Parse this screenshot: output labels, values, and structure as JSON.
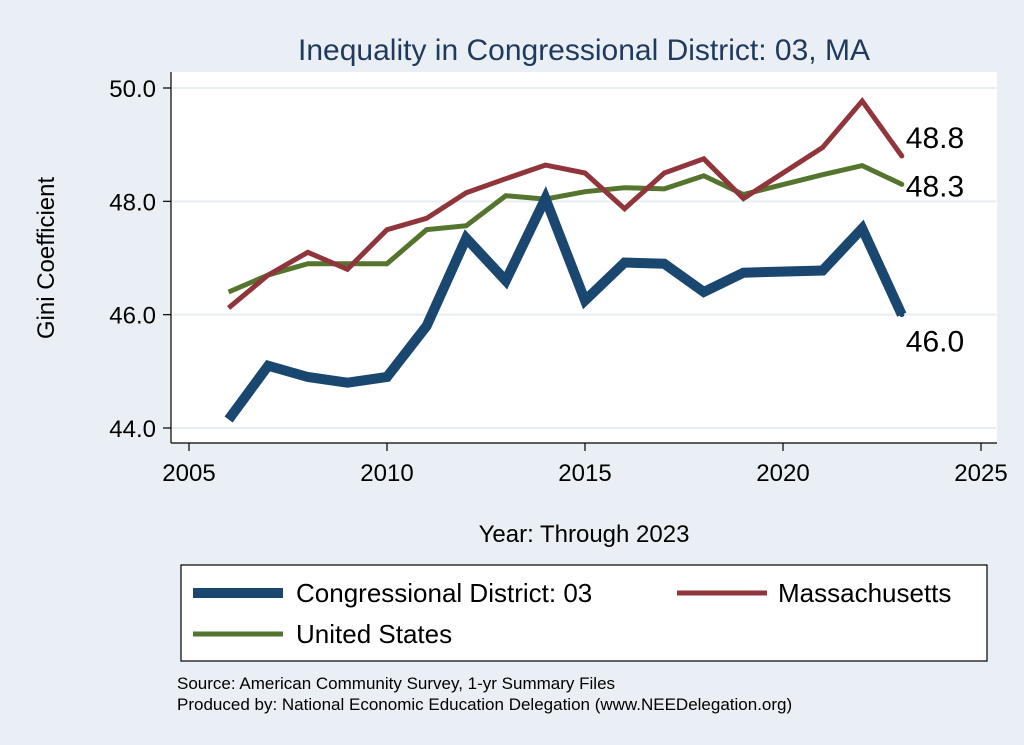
{
  "chart_data": {
    "type": "line",
    "title": "Inequality in Congressional District:  03, MA",
    "xlabel": "Year: Through 2023",
    "ylabel": "Gini Coefficient",
    "xlim": [
      2005,
      2025
    ],
    "ylim": [
      44.0,
      50.0
    ],
    "x_ticks": [
      2005,
      2010,
      2015,
      2020,
      2025
    ],
    "x_tick_labels": [
      "2005",
      "2010",
      "2015",
      "2020",
      "2025"
    ],
    "y_ticks": [
      44.0,
      46.0,
      48.0,
      50.0
    ],
    "y_tick_labels": [
      "44.0",
      "46.0",
      "48.0",
      "50.0"
    ],
    "grid": true,
    "legend_position": "bottom",
    "series": [
      {
        "name": "Congressional District:  03",
        "color": "#1a476f",
        "x": [
          2006,
          2007,
          2008,
          2009,
          2010,
          2011,
          2012,
          2013,
          2014,
          2015,
          2016,
          2017,
          2018,
          2019,
          2021,
          2022,
          2023
        ],
        "values": [
          44.15,
          45.1,
          44.9,
          44.8,
          44.9,
          45.8,
          47.35,
          46.6,
          48.05,
          46.25,
          46.92,
          46.9,
          46.4,
          46.74,
          46.78,
          47.52,
          46.0
        ],
        "end_label": "46.0"
      },
      {
        "name": "Massachusetts",
        "color": "#90353b",
        "x": [
          2006,
          2007,
          2008,
          2009,
          2010,
          2011,
          2012,
          2013,
          2014,
          2015,
          2016,
          2017,
          2018,
          2019,
          2021,
          2022,
          2023
        ],
        "values": [
          46.12,
          46.7,
          47.1,
          46.8,
          47.5,
          47.7,
          48.15,
          48.4,
          48.64,
          48.5,
          47.87,
          48.5,
          48.75,
          48.05,
          48.95,
          49.77,
          48.8
        ],
        "end_label": "48.8"
      },
      {
        "name": "United States",
        "color": "#55752f",
        "x": [
          2006,
          2007,
          2008,
          2009,
          2010,
          2011,
          2012,
          2013,
          2014,
          2015,
          2016,
          2017,
          2018,
          2019,
          2021,
          2022,
          2023
        ],
        "values": [
          46.4,
          46.7,
          46.9,
          46.9,
          46.9,
          47.5,
          47.57,
          48.1,
          48.04,
          48.17,
          48.24,
          48.22,
          48.45,
          48.12,
          48.47,
          48.63,
          48.3
        ],
        "end_label": "48.3"
      }
    ],
    "source_lines": [
      "Source: American Community Survey, 1-yr Summary Files",
      "Produced by: National Economic Education Delegation (www.NEEDelegation.org)"
    ]
  }
}
